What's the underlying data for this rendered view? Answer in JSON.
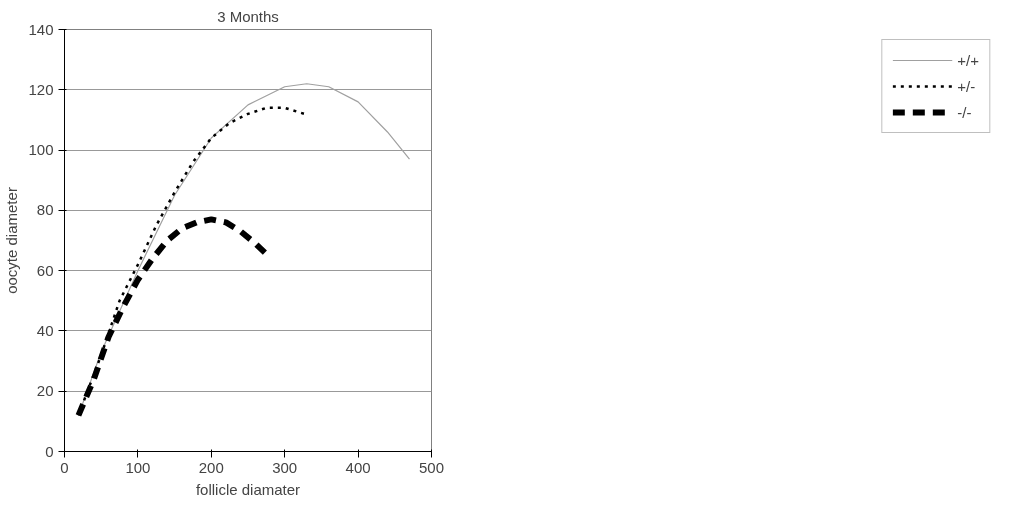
{
  "chart_data": {
    "type": "line",
    "title": "3 Months",
    "xlabel": "follicle diamater",
    "ylabel": "oocyte diameter",
    "xlim": [
      0,
      500
    ],
    "xticks": [
      0,
      100,
      200,
      300,
      400,
      500
    ],
    "ylim": [
      0,
      140
    ],
    "yticks": [
      0,
      20,
      40,
      60,
      80,
      100,
      120,
      140
    ],
    "grid": "y",
    "legend": "right",
    "marker": "none",
    "series": [
      {
        "name": "+/+",
        "color": "#a0a0a0",
        "line_style": "solid",
        "x": [
          19,
          50,
          100,
          150,
          200,
          250,
          300,
          330,
          360,
          400,
          440,
          470
        ],
        "values": [
          12,
          33,
          60,
          85,
          104,
          115,
          121,
          122,
          121,
          116,
          106,
          97
        ]
      },
      {
        "name": "+/-",
        "color": "#000000",
        "line_style": "dotted",
        "x": [
          19,
          50,
          75,
          100,
          125,
          150,
          175,
          200,
          225,
          250,
          275,
          300,
          327
        ],
        "values": [
          12,
          32,
          50,
          62,
          75,
          86,
          96,
          104,
          109,
          112,
          114,
          114,
          112
        ]
      },
      {
        "name": "-/-",
        "color": "#000000",
        "line_style": "dashed",
        "x": [
          19,
          40,
          60,
          80,
          100,
          120,
          140,
          160,
          180,
          200,
          220,
          240,
          260,
          273
        ],
        "values": [
          12,
          24,
          38,
          48,
          57,
          64,
          70,
          74,
          76,
          77,
          76,
          73,
          69,
          66
        ]
      }
    ]
  }
}
